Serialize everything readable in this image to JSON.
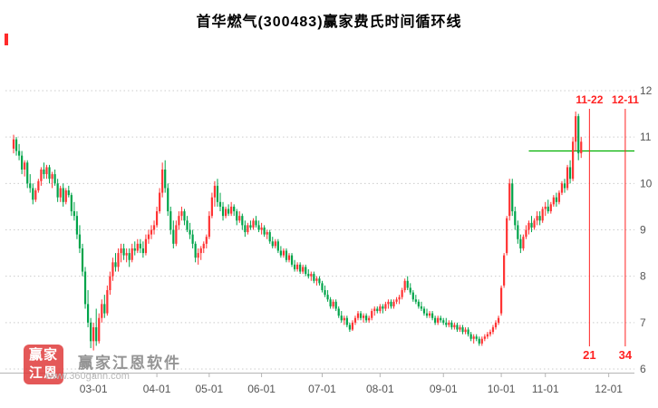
{
  "title": "首华燃气(300483)赢家费氏时间循环线",
  "watermark": {
    "logo_text": "赢家江恩",
    "brand": "赢家江恩软件",
    "url": "www.360gann.com"
  },
  "colors": {
    "up": "#ff3333",
    "down": "#00a44a",
    "cycle_line": "#ff2222",
    "hline": "#00b000",
    "grid": "#cccccc",
    "axis_text": "#555555",
    "title_text": "#000000",
    "watermark_text": "#8f8f8f",
    "watermark_url": "#b8b8b8",
    "logo_bg": "#e03c3c"
  },
  "overlays": {
    "hline": {
      "value": 10.7,
      "start_bar": 187
    },
    "vlines": [
      {
        "top_label": "11-22",
        "bottom_label": "21",
        "bar": 209
      },
      {
        "top_label": "12-11",
        "bottom_label": "34",
        "bar": 222
      }
    ]
  },
  "chart_data": {
    "type": "candlestick",
    "title": "首华燃气(300483)赢家费氏时间循环线",
    "legend": "none",
    "grid": "horizontal-dotted",
    "ylim": [
      6,
      12
    ],
    "yticks": [
      6,
      7,
      8,
      9,
      10,
      11,
      12
    ],
    "xticks": [
      {
        "label": "03-01",
        "bar": 29
      },
      {
        "label": "04-01",
        "bar": 52
      },
      {
        "label": "05-01",
        "bar": 71
      },
      {
        "label": "06-01",
        "bar": 90
      },
      {
        "label": "07-01",
        "bar": 112
      },
      {
        "label": "08-01",
        "bar": 133
      },
      {
        "label": "09-01",
        "bar": 156
      },
      {
        "label": "10-01",
        "bar": 177
      },
      {
        "label": "11-01",
        "bar": 193
      },
      {
        "label": "12-01",
        "bar": 216
      }
    ],
    "candles": [
      [
        "01-19",
        10.75,
        11.05,
        10.65,
        10.95
      ],
      [
        "01-20",
        10.95,
        11.0,
        10.6,
        10.7
      ],
      [
        "01-21",
        10.7,
        10.85,
        10.5,
        10.6
      ],
      [
        "01-24",
        10.6,
        10.7,
        10.2,
        10.3
      ],
      [
        "01-25",
        10.3,
        10.5,
        10.15,
        10.45
      ],
      [
        "01-26",
        10.45,
        10.5,
        9.9,
        10.0
      ],
      [
        "01-27",
        10.0,
        10.2,
        9.8,
        9.9
      ],
      [
        "01-28",
        9.9,
        10.0,
        9.55,
        9.65
      ],
      [
        "01-31",
        9.65,
        9.9,
        9.6,
        9.85
      ],
      [
        "02-01",
        9.85,
        10.1,
        9.8,
        10.05
      ],
      [
        "02-02",
        10.05,
        10.35,
        9.95,
        10.3
      ],
      [
        "02-03",
        10.3,
        10.45,
        10.1,
        10.2
      ],
      [
        "02-04",
        10.2,
        10.4,
        10.1,
        10.35
      ],
      [
        "02-07",
        10.35,
        10.4,
        10.0,
        10.1
      ],
      [
        "02-08",
        10.1,
        10.25,
        9.9,
        10.2
      ],
      [
        "02-09",
        10.2,
        10.3,
        9.95,
        10.0
      ],
      [
        "02-10",
        10.0,
        10.1,
        9.6,
        9.7
      ],
      [
        "02-11",
        9.7,
        9.95,
        9.6,
        9.9
      ],
      [
        "02-14",
        9.9,
        10.0,
        9.5,
        9.6
      ],
      [
        "02-15",
        9.6,
        9.9,
        9.55,
        9.85
      ],
      [
        "02-16",
        9.85,
        9.95,
        9.7,
        9.75
      ],
      [
        "02-17",
        9.75,
        9.8,
        9.3,
        9.4
      ],
      [
        "02-18",
        9.4,
        9.6,
        9.2,
        9.3
      ],
      [
        "02-21",
        9.3,
        9.4,
        8.8,
        8.9
      ],
      [
        "02-22",
        8.9,
        9.1,
        8.5,
        8.6
      ],
      [
        "02-23",
        8.6,
        8.7,
        8.0,
        8.1
      ],
      [
        "02-24",
        8.1,
        8.2,
        7.3,
        7.4
      ],
      [
        "02-25",
        7.4,
        7.7,
        6.9,
        7.0
      ],
      [
        "02-28",
        7.0,
        7.1,
        6.45,
        6.6
      ],
      [
        "03-01",
        6.6,
        7.0,
        6.4,
        6.9
      ],
      [
        "03-02",
        6.9,
        7.3,
        6.5,
        6.6
      ],
      [
        "03-03",
        6.6,
        7.2,
        6.55,
        7.1
      ],
      [
        "03-04",
        7.1,
        7.5,
        7.0,
        7.4
      ],
      [
        "03-07",
        7.4,
        7.6,
        7.1,
        7.2
      ],
      [
        "03-08",
        7.2,
        7.8,
        7.15,
        7.7
      ],
      [
        "03-09",
        7.7,
        8.1,
        7.6,
        8.0
      ],
      [
        "03-10",
        8.0,
        8.4,
        7.9,
        8.3
      ],
      [
        "03-11",
        8.3,
        8.5,
        8.1,
        8.2
      ],
      [
        "03-14",
        8.2,
        8.6,
        8.1,
        8.5
      ],
      [
        "03-15",
        8.5,
        8.7,
        8.3,
        8.6
      ],
      [
        "03-16",
        8.6,
        8.7,
        8.35,
        8.45
      ],
      [
        "03-17",
        8.45,
        8.6,
        8.3,
        8.5
      ],
      [
        "03-18",
        8.5,
        8.6,
        8.2,
        8.35
      ],
      [
        "03-21",
        8.35,
        8.7,
        8.3,
        8.6
      ],
      [
        "03-22",
        8.6,
        8.75,
        8.45,
        8.55
      ],
      [
        "03-23",
        8.55,
        8.8,
        8.5,
        8.7
      ],
      [
        "03-24",
        8.7,
        8.8,
        8.5,
        8.6
      ],
      [
        "03-25",
        8.6,
        8.75,
        8.4,
        8.5
      ],
      [
        "03-28",
        8.5,
        8.9,
        8.45,
        8.8
      ],
      [
        "03-29",
        8.8,
        9.0,
        8.7,
        8.9
      ],
      [
        "03-30",
        8.9,
        9.1,
        8.8,
        9.0
      ],
      [
        "03-31",
        9.0,
        9.2,
        8.9,
        9.1
      ],
      [
        "04-01",
        9.1,
        9.5,
        9.05,
        9.4
      ],
      [
        "04-06",
        9.4,
        9.9,
        9.35,
        9.8
      ],
      [
        "04-07",
        9.8,
        10.45,
        9.7,
        10.3
      ],
      [
        "04-08",
        10.3,
        10.5,
        9.8,
        9.9
      ],
      [
        "04-11",
        9.9,
        10.0,
        9.3,
        9.4
      ],
      [
        "04-12",
        9.4,
        9.5,
        8.9,
        9.0
      ],
      [
        "04-13",
        9.0,
        9.2,
        8.6,
        8.7
      ],
      [
        "04-14",
        8.7,
        9.2,
        8.65,
        9.1
      ],
      [
        "04-15",
        9.1,
        9.4,
        9.0,
        9.3
      ],
      [
        "04-18",
        9.3,
        9.5,
        9.2,
        9.4
      ],
      [
        "04-19",
        9.4,
        9.45,
        9.1,
        9.2
      ],
      [
        "04-20",
        9.2,
        9.3,
        8.95,
        9.0
      ],
      [
        "04-21",
        9.0,
        9.15,
        8.8,
        8.9
      ],
      [
        "04-22",
        8.9,
        9.0,
        8.6,
        8.7
      ],
      [
        "04-25",
        8.7,
        8.75,
        8.3,
        8.4
      ],
      [
        "04-26",
        8.4,
        8.6,
        8.25,
        8.5
      ],
      [
        "04-27",
        8.5,
        8.65,
        8.35,
        8.6
      ],
      [
        "04-28",
        8.6,
        8.75,
        8.5,
        8.7
      ],
      [
        "04-29",
        8.7,
        8.9,
        8.6,
        8.85
      ],
      [
        "05-05",
        8.85,
        9.4,
        8.8,
        9.3
      ],
      [
        "05-06",
        9.3,
        9.8,
        9.25,
        9.7
      ],
      [
        "05-09",
        9.7,
        10.05,
        9.5,
        9.95
      ],
      [
        "05-10",
        9.95,
        10.1,
        9.5,
        9.6
      ],
      [
        "05-11",
        9.6,
        9.8,
        9.4,
        9.5
      ],
      [
        "05-12",
        9.5,
        9.6,
        9.2,
        9.3
      ],
      [
        "05-13",
        9.3,
        9.5,
        9.25,
        9.45
      ],
      [
        "05-16",
        9.45,
        9.55,
        9.3,
        9.35
      ],
      [
        "05-17",
        9.35,
        9.6,
        9.3,
        9.5
      ],
      [
        "05-18",
        9.5,
        9.55,
        9.3,
        9.4
      ],
      [
        "05-19",
        9.4,
        9.45,
        9.1,
        9.2
      ],
      [
        "05-20",
        9.2,
        9.4,
        9.15,
        9.3
      ],
      [
        "05-23",
        9.3,
        9.35,
        9.0,
        9.1
      ],
      [
        "05-24",
        9.1,
        9.2,
        8.85,
        8.95
      ],
      [
        "05-25",
        8.95,
        9.15,
        8.9,
        9.1
      ],
      [
        "05-26",
        9.1,
        9.2,
        9.0,
        9.05
      ],
      [
        "05-27",
        9.05,
        9.25,
        9.0,
        9.2
      ],
      [
        "05-30",
        9.2,
        9.3,
        9.05,
        9.1
      ],
      [
        "05-31",
        9.1,
        9.2,
        8.95,
        9.0
      ],
      [
        "06-01",
        9.0,
        9.15,
        8.9,
        9.05
      ],
      [
        "06-02",
        9.05,
        9.1,
        8.85,
        8.9
      ],
      [
        "06-03",
        8.9,
        9.0,
        8.8,
        8.95
      ],
      [
        "06-06",
        8.95,
        9.0,
        8.7,
        8.75
      ],
      [
        "06-07",
        8.75,
        8.85,
        8.6,
        8.65
      ],
      [
        "06-08",
        8.65,
        8.8,
        8.6,
        8.75
      ],
      [
        "06-09",
        8.75,
        8.8,
        8.5,
        8.55
      ],
      [
        "06-10",
        8.55,
        8.65,
        8.4,
        8.45
      ],
      [
        "06-13",
        8.45,
        8.6,
        8.4,
        8.55
      ],
      [
        "06-14",
        8.55,
        8.6,
        8.3,
        8.35
      ],
      [
        "06-15",
        8.35,
        8.5,
        8.3,
        8.45
      ],
      [
        "06-16",
        8.45,
        8.5,
        8.2,
        8.25
      ],
      [
        "06-17",
        8.25,
        8.35,
        8.1,
        8.15
      ],
      [
        "06-20",
        8.15,
        8.3,
        8.1,
        8.25
      ],
      [
        "06-21",
        8.25,
        8.3,
        8.05,
        8.1
      ],
      [
        "06-22",
        8.1,
        8.25,
        8.05,
        8.2
      ],
      [
        "06-23",
        8.2,
        8.25,
        8.0,
        8.05
      ],
      [
        "06-24",
        8.05,
        8.15,
        7.95,
        8.0
      ],
      [
        "06-27",
        8.0,
        8.1,
        7.9,
        8.05
      ],
      [
        "06-28",
        8.05,
        8.1,
        7.85,
        7.9
      ],
      [
        "06-29",
        7.9,
        8.0,
        7.8,
        7.95
      ],
      [
        "06-30",
        7.95,
        8.0,
        7.8,
        7.85
      ],
      [
        "07-01",
        7.85,
        7.9,
        7.65,
        7.7
      ],
      [
        "07-04",
        7.7,
        7.8,
        7.55,
        7.6
      ],
      [
        "07-05",
        7.6,
        7.7,
        7.45,
        7.5
      ],
      [
        "07-06",
        7.5,
        7.55,
        7.3,
        7.35
      ],
      [
        "07-07",
        7.35,
        7.5,
        7.3,
        7.45
      ],
      [
        "07-08",
        7.45,
        7.5,
        7.25,
        7.3
      ],
      [
        "07-11",
        7.3,
        7.35,
        7.1,
        7.15
      ],
      [
        "07-12",
        7.15,
        7.25,
        7.0,
        7.05
      ],
      [
        "07-13",
        7.05,
        7.15,
        6.95,
        7.1
      ],
      [
        "07-14",
        7.1,
        7.15,
        6.9,
        6.95
      ],
      [
        "07-15",
        6.95,
        7.0,
        6.8,
        6.85
      ],
      [
        "07-18",
        6.85,
        7.05,
        6.82,
        7.0
      ],
      [
        "07-19",
        7.0,
        7.15,
        6.95,
        7.1
      ],
      [
        "07-20",
        7.1,
        7.25,
        7.05,
        7.2
      ],
      [
        "07-21",
        7.2,
        7.25,
        7.05,
        7.1
      ],
      [
        "07-22",
        7.1,
        7.2,
        7.0,
        7.15
      ],
      [
        "07-25",
        7.15,
        7.2,
        7.0,
        7.05
      ],
      [
        "07-26",
        7.05,
        7.15,
        7.0,
        7.1
      ],
      [
        "07-27",
        7.1,
        7.3,
        7.05,
        7.25
      ],
      [
        "07-28",
        7.25,
        7.35,
        7.15,
        7.3
      ],
      [
        "07-29",
        7.3,
        7.35,
        7.2,
        7.25
      ],
      [
        "08-01",
        7.25,
        7.4,
        7.2,
        7.35
      ],
      [
        "08-02",
        7.35,
        7.4,
        7.2,
        7.3
      ],
      [
        "08-03",
        7.3,
        7.45,
        7.25,
        7.4
      ],
      [
        "08-04",
        7.4,
        7.5,
        7.3,
        7.45
      ],
      [
        "08-05",
        7.45,
        7.5,
        7.3,
        7.35
      ],
      [
        "08-08",
        7.35,
        7.5,
        7.3,
        7.45
      ],
      [
        "08-09",
        7.45,
        7.55,
        7.4,
        7.5
      ],
      [
        "08-10",
        7.5,
        7.6,
        7.4,
        7.55
      ],
      [
        "08-11",
        7.55,
        7.75,
        7.5,
        7.7
      ],
      [
        "08-12",
        7.7,
        7.95,
        7.65,
        7.9
      ],
      [
        "08-15",
        7.9,
        8.0,
        7.7,
        7.75
      ],
      [
        "08-16",
        7.75,
        7.85,
        7.6,
        7.65
      ],
      [
        "08-17",
        7.65,
        7.7,
        7.45,
        7.5
      ],
      [
        "08-18",
        7.5,
        7.6,
        7.4,
        7.45
      ],
      [
        "08-19",
        7.45,
        7.5,
        7.3,
        7.35
      ],
      [
        "08-22",
        7.35,
        7.45,
        7.25,
        7.3
      ],
      [
        "08-23",
        7.3,
        7.35,
        7.15,
        7.2
      ],
      [
        "08-24",
        7.2,
        7.3,
        7.1,
        7.15
      ],
      [
        "08-25",
        7.15,
        7.25,
        7.1,
        7.2
      ],
      [
        "08-26",
        7.2,
        7.25,
        7.05,
        7.1
      ],
      [
        "08-29",
        7.1,
        7.15,
        6.95,
        7.0
      ],
      [
        "08-30",
        7.0,
        7.15,
        6.95,
        7.1
      ],
      [
        "08-31",
        7.1,
        7.15,
        7.0,
        7.05
      ],
      [
        "09-01",
        7.05,
        7.1,
        6.95,
        7.0
      ],
      [
        "09-02",
        7.0,
        7.1,
        6.9,
        6.95
      ],
      [
        "09-05",
        6.95,
        7.05,
        6.9,
        7.0
      ],
      [
        "09-06",
        7.0,
        7.05,
        6.85,
        6.9
      ],
      [
        "09-07",
        6.9,
        7.0,
        6.85,
        6.95
      ],
      [
        "09-08",
        6.95,
        7.0,
        6.8,
        6.85
      ],
      [
        "09-09",
        6.85,
        6.95,
        6.8,
        6.9
      ],
      [
        "09-13",
        6.9,
        6.95,
        6.75,
        6.8
      ],
      [
        "09-14",
        6.8,
        6.9,
        6.75,
        6.85
      ],
      [
        "09-15",
        6.85,
        6.9,
        6.7,
        6.75
      ],
      [
        "09-16",
        6.75,
        6.8,
        6.6,
        6.65
      ],
      [
        "09-19",
        6.65,
        6.75,
        6.55,
        6.7
      ],
      [
        "09-20",
        6.7,
        6.75,
        6.6,
        6.65
      ],
      [
        "09-21",
        6.65,
        6.7,
        6.5,
        6.55
      ],
      [
        "09-22",
        6.55,
        6.7,
        6.5,
        6.65
      ],
      [
        "09-23",
        6.65,
        6.75,
        6.6,
        6.7
      ],
      [
        "09-26",
        6.7,
        6.8,
        6.65,
        6.75
      ],
      [
        "09-27",
        6.75,
        6.85,
        6.7,
        6.8
      ],
      [
        "09-28",
        6.8,
        6.95,
        6.75,
        6.9
      ],
      [
        "09-29",
        6.9,
        7.05,
        6.85,
        7.0
      ],
      [
        "09-30",
        7.0,
        7.15,
        6.95,
        7.1
      ],
      [
        "10-10",
        7.2,
        7.8,
        7.15,
        7.75
      ],
      [
        "10-11",
        7.8,
        8.5,
        7.75,
        8.45
      ],
      [
        "10-12",
        8.5,
        9.3,
        8.45,
        9.25
      ],
      [
        "10-13",
        9.3,
        10.1,
        9.2,
        10.0
      ],
      [
        "10-14",
        10.0,
        10.1,
        9.3,
        9.4
      ],
      [
        "10-17",
        9.4,
        9.5,
        9.0,
        9.1
      ],
      [
        "10-18",
        9.1,
        9.2,
        8.7,
        8.8
      ],
      [
        "10-19",
        8.8,
        8.9,
        8.5,
        8.6
      ],
      [
        "10-20",
        8.6,
        8.9,
        8.55,
        8.85
      ],
      [
        "10-21",
        8.85,
        9.1,
        8.8,
        9.0
      ],
      [
        "10-24",
        9.0,
        9.2,
        8.9,
        9.15
      ],
      [
        "10-25",
        9.15,
        9.3,
        8.95,
        9.05
      ],
      [
        "10-26",
        9.05,
        9.25,
        9.0,
        9.2
      ],
      [
        "10-27",
        9.2,
        9.4,
        9.1,
        9.3
      ],
      [
        "10-28",
        9.3,
        9.4,
        9.1,
        9.2
      ],
      [
        "10-31",
        9.2,
        9.5,
        9.15,
        9.45
      ],
      [
        "11-01",
        9.45,
        9.6,
        9.3,
        9.5
      ],
      [
        "11-02",
        9.5,
        9.65,
        9.35,
        9.4
      ],
      [
        "11-03",
        9.4,
        9.6,
        9.35,
        9.55
      ],
      [
        "11-04",
        9.55,
        9.75,
        9.5,
        9.7
      ],
      [
        "11-07",
        9.7,
        9.8,
        9.5,
        9.6
      ],
      [
        "11-08",
        9.6,
        9.85,
        9.55,
        9.8
      ],
      [
        "11-09",
        9.8,
        10.05,
        9.75,
        10.0
      ],
      [
        "11-10",
        10.0,
        10.1,
        9.8,
        9.9
      ],
      [
        "11-11",
        9.9,
        10.4,
        9.85,
        10.35
      ],
      [
        "11-14",
        10.35,
        10.5,
        10.0,
        10.1
      ],
      [
        "11-15",
        10.1,
        11.0,
        10.05,
        10.9
      ],
      [
        "11-16",
        10.9,
        11.55,
        10.7,
        11.45
      ],
      [
        "11-17",
        11.45,
        11.5,
        10.5,
        10.65
      ],
      [
        "11-18",
        10.65,
        11.0,
        10.55,
        10.9
      ]
    ]
  }
}
